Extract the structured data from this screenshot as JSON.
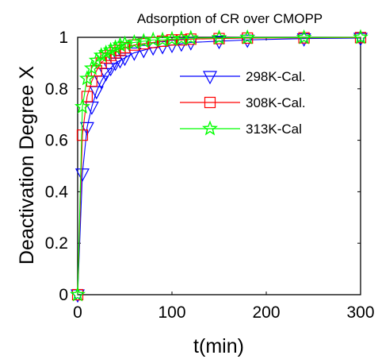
{
  "chart_data": {
    "type": "line",
    "title": "Adsorption of CR over CMOPP",
    "xlabel": "t(min)",
    "ylabel": "Deactivation Degree X",
    "xlim": [
      0,
      300
    ],
    "ylim": [
      0,
      1
    ],
    "xticks": [
      0,
      100,
      200,
      300
    ],
    "yticks": [
      0,
      0.2,
      0.4,
      0.6,
      0.8,
      1
    ],
    "xtick_labels": [
      "0",
      "100",
      "200",
      "300"
    ],
    "ytick_labels": [
      "0",
      "0.2",
      "0.4",
      "0.6",
      "0.8",
      "1"
    ],
    "grid": false,
    "box": true,
    "legend_position": "upper-right",
    "x": [
      0,
      5,
      10,
      15,
      20,
      25,
      30,
      35,
      40,
      45,
      50,
      60,
      70,
      80,
      90,
      100,
      110,
      120,
      150,
      180,
      240,
      300
    ],
    "series": [
      {
        "name": "298K-Cal.",
        "color": "#0000ff",
        "marker": "triangle-down",
        "values": [
          0,
          0.47,
          0.65,
          0.73,
          0.79,
          0.83,
          0.86,
          0.88,
          0.9,
          0.91,
          0.92,
          0.94,
          0.95,
          0.96,
          0.965,
          0.97,
          0.975,
          0.98,
          0.985,
          0.99,
          0.995,
          0.997
        ]
      },
      {
        "name": "308K-Cal.",
        "color": "#ff0000",
        "marker": "square",
        "values": [
          0,
          0.62,
          0.77,
          0.83,
          0.87,
          0.9,
          0.92,
          0.93,
          0.94,
          0.95,
          0.96,
          0.97,
          0.975,
          0.98,
          0.985,
          0.99,
          0.99,
          0.993,
          0.995,
          0.997,
          0.998,
          0.999
        ]
      },
      {
        "name": "313K-Cal",
        "color": "#00ff00",
        "marker": "star",
        "values": [
          0,
          0.73,
          0.84,
          0.88,
          0.91,
          0.93,
          0.94,
          0.95,
          0.96,
          0.97,
          0.975,
          0.98,
          0.985,
          0.99,
          0.99,
          0.993,
          0.995,
          0.997,
          0.998,
          0.999,
          0.999,
          1.0
        ]
      }
    ]
  }
}
